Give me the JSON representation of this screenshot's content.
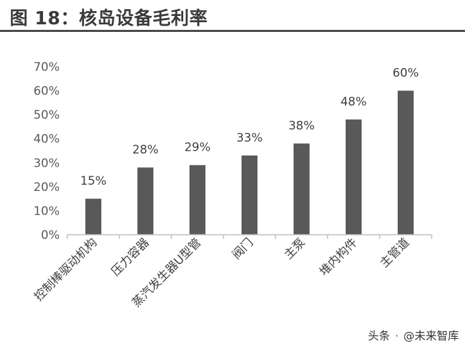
{
  "header": {
    "title": "图 18：核岛设备毛利率"
  },
  "watermark": {
    "prefix": "头条",
    "handle": "@未来智库"
  },
  "colors": {
    "bar": "#595959",
    "axis": "#bfbfbf",
    "title_rule": "#4a4a4a"
  },
  "chart_data": {
    "type": "bar",
    "title": "",
    "xlabel": "",
    "ylabel": "",
    "ylim": [
      0,
      0.7
    ],
    "yticks": [
      0,
      0.1,
      0.2,
      0.3,
      0.4,
      0.5,
      0.6,
      0.7
    ],
    "ytick_labels": [
      "0%",
      "10%",
      "20%",
      "30%",
      "40%",
      "50%",
      "60%",
      "70%"
    ],
    "grid": false,
    "categories": [
      "控制棒驱动机构",
      "压力容器",
      "蒸汽发生器U型管",
      "阀门",
      "主泵",
      "堆内构件",
      "主管道"
    ],
    "values": [
      0.15,
      0.28,
      0.29,
      0.33,
      0.38,
      0.48,
      0.6
    ],
    "data_labels": [
      "15%",
      "28%",
      "29%",
      "33%",
      "38%",
      "48%",
      "60%"
    ]
  }
}
